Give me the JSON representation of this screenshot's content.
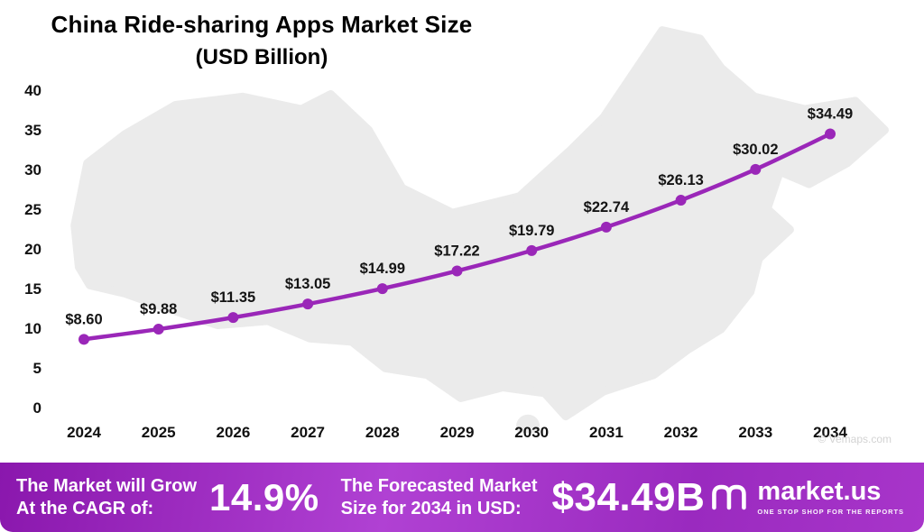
{
  "chart_data": {
    "type": "line",
    "title": "China Ride-sharing Apps Market Size",
    "subtitle": "(USD Billion)",
    "categories": [
      "2024",
      "2025",
      "2026",
      "2027",
      "2028",
      "2029",
      "2030",
      "2031",
      "2032",
      "2033",
      "2034"
    ],
    "values": [
      8.6,
      9.88,
      11.35,
      13.05,
      14.99,
      17.22,
      19.79,
      22.74,
      26.13,
      30.02,
      34.49
    ],
    "labels": [
      "$8.60",
      "$9.88",
      "$11.35",
      "$13.05",
      "$14.99",
      "$17.22",
      "$19.79",
      "$22.74",
      "$26.13",
      "$30.02",
      "$34.49"
    ],
    "ylim": [
      0,
      40
    ],
    "yticks": [
      "0",
      "5",
      "10",
      "15",
      "20",
      "25",
      "30",
      "35",
      "40"
    ],
    "xlabel": "",
    "ylabel": "",
    "grid": false,
    "legend": "none",
    "line_color": "#9a27b8"
  },
  "watermark": "© Vemaps.com",
  "footer": {
    "cagr_label_line1": "The Market will Grow",
    "cagr_label_line2": "At the CAGR of:",
    "cagr_value": "14.9%",
    "forecast_label_line1": "The Forecasted Market",
    "forecast_label_line2": "Size for 2034 in USD:",
    "forecast_value": "$34.49B",
    "brand_name": "market.us",
    "brand_tagline": "ONE STOP SHOP FOR THE REPORTS"
  },
  "colors": {
    "accent": "#9a27b8",
    "banner_gradient_start": "#8a17ad",
    "banner_gradient_mid": "#b041d3",
    "banner_gradient_end": "#a835ca",
    "map_fill": "#ebebeb",
    "text": "#000000",
    "watermark": "#d3d3d3"
  }
}
